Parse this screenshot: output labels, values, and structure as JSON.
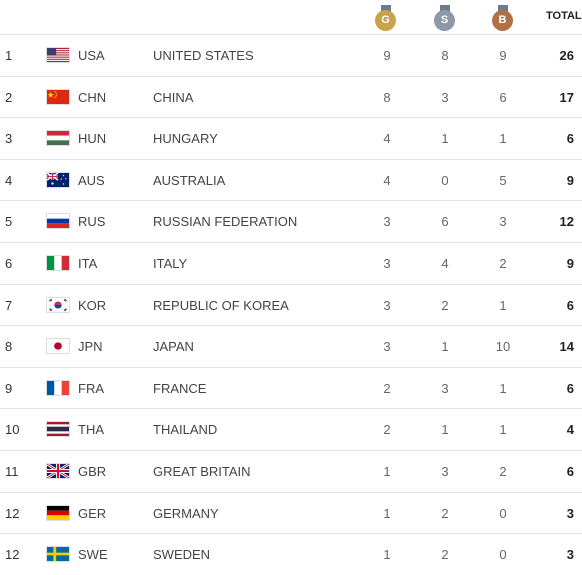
{
  "header": {
    "gold_letter": "G",
    "silver_letter": "S",
    "bronze_letter": "B",
    "total_label": "TOTAL"
  },
  "rows": [
    {
      "rank": "1",
      "code": "USA",
      "name": "UNITED STATES",
      "gold": "9",
      "silver": "8",
      "bronze": "9",
      "total": "26"
    },
    {
      "rank": "2",
      "code": "CHN",
      "name": "CHINA",
      "gold": "8",
      "silver": "3",
      "bronze": "6",
      "total": "17"
    },
    {
      "rank": "3",
      "code": "HUN",
      "name": "HUNGARY",
      "gold": "4",
      "silver": "1",
      "bronze": "1",
      "total": "6"
    },
    {
      "rank": "4",
      "code": "AUS",
      "name": "AUSTRALIA",
      "gold": "4",
      "silver": "0",
      "bronze": "5",
      "total": "9"
    },
    {
      "rank": "5",
      "code": "RUS",
      "name": "RUSSIAN FEDERATION",
      "gold": "3",
      "silver": "6",
      "bronze": "3",
      "total": "12"
    },
    {
      "rank": "6",
      "code": "ITA",
      "name": "ITALY",
      "gold": "3",
      "silver": "4",
      "bronze": "2",
      "total": "9"
    },
    {
      "rank": "7",
      "code": "KOR",
      "name": "REPUBLIC OF KOREA",
      "gold": "3",
      "silver": "2",
      "bronze": "1",
      "total": "6"
    },
    {
      "rank": "8",
      "code": "JPN",
      "name": "JAPAN",
      "gold": "3",
      "silver": "1",
      "bronze": "10",
      "total": "14"
    },
    {
      "rank": "9",
      "code": "FRA",
      "name": "FRANCE",
      "gold": "2",
      "silver": "3",
      "bronze": "1",
      "total": "6"
    },
    {
      "rank": "10",
      "code": "THA",
      "name": "THAILAND",
      "gold": "2",
      "silver": "1",
      "bronze": "1",
      "total": "4"
    },
    {
      "rank": "11",
      "code": "GBR",
      "name": "GREAT BRITAIN",
      "gold": "1",
      "silver": "3",
      "bronze": "2",
      "total": "6"
    },
    {
      "rank": "12",
      "code": "GER",
      "name": "GERMANY",
      "gold": "1",
      "silver": "2",
      "bronze": "0",
      "total": "3"
    },
    {
      "rank": "12",
      "code": "SWE",
      "name": "SWEDEN",
      "gold": "1",
      "silver": "2",
      "bronze": "0",
      "total": "3"
    }
  ]
}
